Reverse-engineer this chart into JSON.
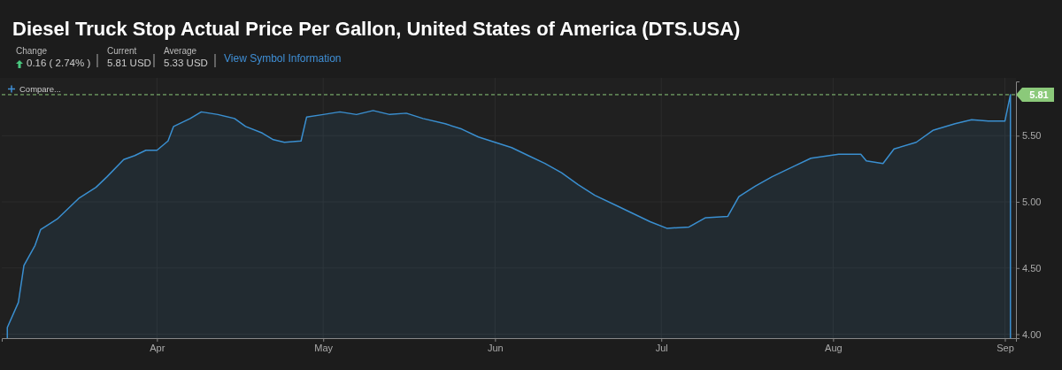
{
  "chart_data": {
    "type": "area",
    "title": "Diesel Truck Stop Actual Price Per Gallon, United States of America (DTS.USA)",
    "annotations": [
      "Change",
      "0.16 ( 2.74% )",
      "Current",
      "5.81 USD",
      "Average",
      "5.33 USD",
      "View Symbol Information",
      "Compare..."
    ],
    "x": [
      "--03-05",
      "--03-07",
      "--03-08",
      "--03-10",
      "--03-11",
      "--03-14",
      "--03-16",
      "--03-18",
      "--03-21",
      "--03-23",
      "--03-26",
      "--03-28",
      "--03-30",
      "--04-01",
      "--04-03",
      "--04-04",
      "--04-07",
      "--04-09",
      "--04-12",
      "--04-15",
      "--04-17",
      "--04-20",
      "--04-22",
      "--04-24",
      "--04-27",
      "--04-28",
      "--05-01",
      "--05-04",
      "--05-07",
      "--05-10",
      "--05-13",
      "--05-16",
      "--05-19",
      "--05-23",
      "--05-26",
      "--05-29",
      "--06-01",
      "--06-04",
      "--06-07",
      "--06-10",
      "--06-13",
      "--06-16",
      "--06-19",
      "--06-23",
      "--06-26",
      "--06-29",
      "--07-02",
      "--07-06",
      "--07-09",
      "--07-13",
      "--07-15",
      "--07-18",
      "--07-21",
      "--07-25",
      "--07-28",
      "--08-02",
      "--08-06",
      "--08-07",
      "--08-10",
      "--08-12",
      "--08-16",
      "--08-19",
      "--08-23",
      "--08-26",
      "--08-29",
      "--09-01",
      "--09-02"
    ],
    "series": [
      {
        "color": "#3a8fd0",
        "values": [
          4.05,
          4.24,
          4.52,
          4.67,
          4.79,
          4.87,
          4.95,
          5.03,
          5.11,
          5.19,
          5.32,
          5.35,
          5.39,
          5.39,
          5.46,
          5.57,
          5.63,
          5.68,
          5.66,
          5.63,
          5.57,
          5.52,
          5.47,
          5.45,
          5.46,
          5.64,
          5.66,
          5.68,
          5.66,
          5.69,
          5.66,
          5.67,
          5.63,
          5.59,
          5.55,
          5.49,
          5.45,
          5.41,
          5.35,
          5.29,
          5.22,
          5.13,
          5.05,
          4.97,
          4.91,
          4.85,
          4.8,
          4.81,
          4.88,
          4.89,
          5.04,
          5.12,
          5.19,
          5.27,
          5.33,
          5.36,
          5.36,
          5.31,
          5.29,
          5.4,
          5.45,
          5.54,
          5.59,
          5.62,
          5.61,
          5.61,
          5.81
        ]
      }
    ],
    "xlim": [
      "--03-04",
      "--09-03"
    ],
    "xticks": [
      {
        "value": "--04-01",
        "label": "Apr"
      },
      {
        "value": "--05-01",
        "label": "May"
      },
      {
        "value": "--06-01",
        "label": "Jun"
      },
      {
        "value": "--07-01",
        "label": "Jul"
      },
      {
        "value": "--08-01",
        "label": "Aug"
      },
      {
        "value": "--09-01",
        "label": "Sep"
      }
    ],
    "ylim": [
      3.97,
      5.91
    ],
    "yticks": [
      {
        "value": 4,
        "label": "4.00"
      },
      {
        "value": 4.5,
        "label": "4.50"
      },
      {
        "value": 5,
        "label": "5.00"
      },
      {
        "value": 5.5,
        "label": "5.50"
      }
    ],
    "grid": true,
    "ref_lines": [
      {
        "axis": "y",
        "value": 5.81,
        "label": "5.81",
        "color": "#8bc97a",
        "line_style": "dashed"
      }
    ]
  }
}
